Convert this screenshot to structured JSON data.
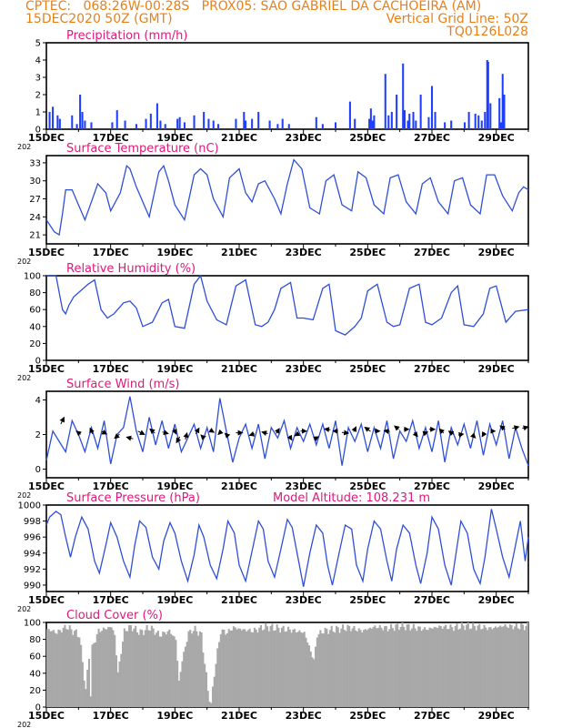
{
  "header": {
    "line1_left": "CPTEC:   068:26W-00:28S   PROX05: SAO GABRIEL DA CACHOEIRA (AM)",
    "line2_left": "15DEC2020 50Z (GMT)",
    "line2_right": "Vertical Grid Line: 50Z",
    "line3_right": "TQ0126L028"
  },
  "colors": {
    "header": "#e8801a",
    "panel_title": "#e0187a",
    "line": "#2f4fd6",
    "bar": "#1f3fff",
    "cloud": "#a8a8a8"
  },
  "x_axis": {
    "labels": [
      "15DEC",
      "17DEC",
      "19DEC",
      "21DEC",
      "23DEC",
      "25DEC",
      "27DEC",
      "29DEC"
    ],
    "year_stub": "202",
    "domain_days": [
      0,
      15
    ]
  },
  "chart_data": [
    {
      "id": "precipitation",
      "type": "bar",
      "title": "Precipitation (mm/h)",
      "ylim": [
        0,
        5
      ],
      "yticks": [
        "0",
        "1",
        "2",
        "3",
        "4",
        "5"
      ],
      "x": [
        0.1,
        0.2,
        0.35,
        0.42,
        0.8,
        0.95,
        1.05,
        1.12,
        1.2,
        1.4,
        2.05,
        2.2,
        2.45,
        2.8,
        3.1,
        3.25,
        3.45,
        3.55,
        3.7,
        4.08,
        4.15,
        4.3,
        4.6,
        4.9,
        5.05,
        5.2,
        5.35,
        5.9,
        6.15,
        6.2,
        6.4,
        6.6,
        6.95,
        7.2,
        7.35,
        7.55,
        8.4,
        8.6,
        9.0,
        9.45,
        9.6,
        10.05,
        10.1,
        10.15,
        10.2,
        10.55,
        10.65,
        10.75,
        10.9,
        11.1,
        11.15,
        11.25,
        11.3,
        11.42,
        11.5,
        11.65,
        11.9,
        12.0,
        12.1,
        12.4,
        12.6,
        13.02,
        13.15,
        13.35,
        13.45,
        13.55,
        13.65,
        13.72,
        13.75,
        13.82,
        14.1,
        14.15,
        14.2,
        14.25
      ],
      "values": [
        1.0,
        1.3,
        0.8,
        0.6,
        0.8,
        0.3,
        2.0,
        1.0,
        0.5,
        0.4,
        0.4,
        1.1,
        0.5,
        0.3,
        0.6,
        0.9,
        1.5,
        0.5,
        0.3,
        0.6,
        0.7,
        0.4,
        0.8,
        1.0,
        0.6,
        0.5,
        0.3,
        0.6,
        1.0,
        0.5,
        0.6,
        1.0,
        0.5,
        0.3,
        0.6,
        0.3,
        0.7,
        0.3,
        0.4,
        1.6,
        0.6,
        0.6,
        1.2,
        0.5,
        0.8,
        3.2,
        0.8,
        1.0,
        2.0,
        3.8,
        1.1,
        0.5,
        0.9,
        1.0,
        0.5,
        2.0,
        0.7,
        2.5,
        1.0,
        0.4,
        0.5,
        0.4,
        1.0,
        0.9,
        0.8,
        0.5,
        1.0,
        4.0,
        3.9,
        1.5,
        1.8,
        0.4,
        3.2,
        2.0
      ]
    },
    {
      "id": "temperature",
      "type": "line",
      "title": "Surface Temperature (nC)",
      "ylim": [
        19.5,
        34.2
      ],
      "yticks": [
        "21",
        "24",
        "27",
        "30",
        "33"
      ],
      "x": [
        0,
        0.25,
        0.4,
        0.5,
        0.6,
        0.8,
        1.0,
        1.2,
        1.4,
        1.6,
        1.85,
        2.0,
        2.3,
        2.5,
        2.6,
        2.8,
        3.0,
        3.2,
        3.5,
        3.65,
        3.8,
        4.0,
        4.3,
        4.6,
        4.8,
        5.0,
        5.2,
        5.5,
        5.7,
        6.0,
        6.2,
        6.4,
        6.6,
        6.8,
        7.1,
        7.3,
        7.5,
        7.7,
        7.95,
        8.2,
        8.5,
        8.7,
        8.95,
        9.2,
        9.5,
        9.7,
        9.95,
        10.2,
        10.5,
        10.7,
        10.95,
        11.2,
        11.5,
        11.7,
        11.95,
        12.2,
        12.5,
        12.7,
        12.95,
        13.2,
        13.5,
        13.7,
        13.95,
        14.2,
        14.5,
        14.7,
        14.85,
        15
      ],
      "values": [
        23.5,
        21.5,
        21.0,
        24.5,
        28.5,
        28.5,
        26.0,
        23.5,
        26.5,
        29.5,
        28.0,
        25.0,
        28.0,
        32.5,
        32.0,
        29.0,
        26.5,
        24.0,
        31.5,
        32.5,
        30.0,
        26.0,
        23.5,
        31.0,
        32.0,
        31.0,
        27.0,
        24.0,
        30.5,
        32.0,
        28.0,
        26.5,
        29.5,
        30.0,
        27.0,
        24.5,
        29.5,
        33.5,
        32.0,
        25.5,
        24.5,
        30.0,
        31.0,
        26.0,
        25.0,
        31.5,
        30.5,
        26.0,
        24.5,
        30.5,
        31.0,
        26.5,
        24.5,
        29.5,
        30.5,
        26.5,
        24.5,
        30.0,
        30.5,
        26.0,
        24.5,
        31.0,
        31.0,
        27.5,
        25.0,
        28.0,
        29.0,
        28.5
      ]
    },
    {
      "id": "humidity",
      "type": "line",
      "title": "Relative Humidity (%)",
      "ylim": [
        0,
        100
      ],
      "yticks": [
        "0",
        "20",
        "40",
        "60",
        "80",
        "100"
      ],
      "x": [
        0,
        0.3,
        0.5,
        0.6,
        0.7,
        0.85,
        1.0,
        1.3,
        1.5,
        1.7,
        1.9,
        2.1,
        2.4,
        2.6,
        2.8,
        3.0,
        3.3,
        3.6,
        3.8,
        4.0,
        4.3,
        4.6,
        4.8,
        5.0,
        5.3,
        5.6,
        5.9,
        6.2,
        6.5,
        6.7,
        6.9,
        7.1,
        7.3,
        7.6,
        7.8,
        8.0,
        8.3,
        8.6,
        8.8,
        9.0,
        9.3,
        9.6,
        9.8,
        10.0,
        10.3,
        10.6,
        10.8,
        11.0,
        11.3,
        11.6,
        11.8,
        12.0,
        12.3,
        12.6,
        12.8,
        13.0,
        13.3,
        13.6,
        13.8,
        14.0,
        14.3,
        14.6,
        15
      ],
      "values": [
        100,
        100,
        60,
        55,
        65,
        75,
        80,
        90,
        95,
        60,
        50,
        55,
        68,
        70,
        62,
        40,
        45,
        68,
        72,
        40,
        38,
        90,
        100,
        70,
        48,
        42,
        88,
        95,
        42,
        40,
        45,
        60,
        85,
        92,
        50,
        50,
        48,
        85,
        90,
        35,
        30,
        40,
        50,
        82,
        90,
        45,
        40,
        42,
        85,
        90,
        45,
        42,
        50,
        80,
        88,
        42,
        40,
        55,
        85,
        88,
        45,
        58,
        60
      ]
    },
    {
      "id": "wind",
      "type": "line",
      "title": "Surface Wind (m/s)",
      "ylim": [
        -0.5,
        4.5
      ],
      "yticks": [
        "0",
        "2",
        "4"
      ],
      "x": [
        0,
        0.2,
        0.4,
        0.6,
        0.8,
        1.0,
        1.2,
        1.4,
        1.6,
        1.8,
        2.0,
        2.2,
        2.4,
        2.6,
        2.8,
        3.0,
        3.2,
        3.4,
        3.6,
        3.8,
        4.0,
        4.2,
        4.4,
        4.6,
        4.8,
        5.0,
        5.2,
        5.4,
        5.6,
        5.8,
        6.0,
        6.2,
        6.4,
        6.6,
        6.8,
        7.0,
        7.2,
        7.4,
        7.6,
        7.8,
        8.0,
        8.2,
        8.4,
        8.6,
        8.8,
        9.0,
        9.2,
        9.4,
        9.6,
        9.8,
        10.0,
        10.2,
        10.4,
        10.6,
        10.8,
        11.0,
        11.2,
        11.4,
        11.6,
        11.8,
        12.0,
        12.2,
        12.4,
        12.6,
        12.8,
        13.0,
        13.2,
        13.4,
        13.6,
        13.8,
        14.0,
        14.2,
        14.4,
        14.6,
        14.8,
        15
      ],
      "values": [
        0.5,
        2.2,
        1.6,
        1.0,
        2.8,
        2.0,
        1.0,
        2.4,
        1.2,
        2.8,
        0.3,
        2.0,
        2.4,
        4.2,
        2.2,
        1.0,
        3.0,
        1.4,
        2.8,
        1.2,
        2.6,
        1.0,
        1.8,
        2.6,
        1.2,
        2.4,
        1.0,
        4.1,
        2.2,
        0.4,
        1.8,
        2.6,
        1.2,
        2.6,
        0.6,
        2.4,
        1.8,
        2.8,
        1.2,
        2.4,
        1.6,
        2.6,
        1.4,
        2.6,
        1.2,
        2.8,
        0.2,
        2.4,
        1.6,
        2.6,
        1.0,
        2.4,
        1.2,
        2.8,
        0.6,
        2.2,
        1.6,
        2.8,
        1.2,
        2.4,
        1.0,
        2.8,
        0.4,
        2.4,
        1.4,
        2.6,
        1.2,
        2.8,
        0.8,
        2.6,
        1.4,
        2.8,
        0.6,
        2.4,
        1.2,
        0.2
      ]
    },
    {
      "id": "pressure",
      "type": "line",
      "title": "Surface Pressure (hPa)",
      "subtitle": "Model Altitude: 108.231 m",
      "ylim": [
        989.2,
        1000
      ],
      "yticks": [
        "990",
        "992",
        "994",
        "996",
        "998",
        "1000"
      ],
      "x": [
        0,
        0.1,
        0.3,
        0.45,
        0.6,
        0.75,
        0.9,
        1.1,
        1.3,
        1.5,
        1.65,
        1.85,
        2.0,
        2.2,
        2.4,
        2.6,
        2.75,
        2.9,
        3.1,
        3.3,
        3.5,
        3.65,
        3.85,
        4.0,
        4.2,
        4.4,
        4.6,
        4.75,
        4.9,
        5.1,
        5.3,
        5.5,
        5.65,
        5.85,
        6.0,
        6.2,
        6.4,
        6.6,
        6.75,
        6.9,
        7.1,
        7.3,
        7.5,
        7.65,
        7.85,
        8.0,
        8.2,
        8.4,
        8.6,
        8.75,
        8.9,
        9.1,
        9.3,
        9.5,
        9.65,
        9.85,
        10.0,
        10.2,
        10.4,
        10.6,
        10.75,
        10.9,
        11.1,
        11.3,
        11.5,
        11.65,
        11.85,
        12.0,
        12.2,
        12.4,
        12.6,
        12.75,
        12.9,
        13.1,
        13.3,
        13.5,
        13.65,
        13.85,
        14.0,
        14.2,
        14.4,
        14.6,
        14.75,
        14.9,
        15
      ],
      "values": [
        997.5,
        998.5,
        999.2,
        998.8,
        996.0,
        993.5,
        996.0,
        998.5,
        997.0,
        993.0,
        991.5,
        995.0,
        997.8,
        996.0,
        993.0,
        991.0,
        995.0,
        998.0,
        997.2,
        993.5,
        992.0,
        995.5,
        997.8,
        996.5,
        993.0,
        990.5,
        993.8,
        997.5,
        996.0,
        992.5,
        990.8,
        994.5,
        998.0,
        996.5,
        992.5,
        990.5,
        994.2,
        998.0,
        997.0,
        993.0,
        991.0,
        994.5,
        998.2,
        997.2,
        993.0,
        989.8,
        994.0,
        997.5,
        996.5,
        992.5,
        990.0,
        993.8,
        997.5,
        997.0,
        992.5,
        990.5,
        994.5,
        998.0,
        997.0,
        993.0,
        990.5,
        994.5,
        997.5,
        996.5,
        992.5,
        990.2,
        994.0,
        998.5,
        997.0,
        992.5,
        990.0,
        994.0,
        998.0,
        996.5,
        992.0,
        990.2,
        993.5,
        999.5,
        997.0,
        993.5,
        991.0,
        995.0,
        998.0,
        993.0,
        996.0
      ]
    },
    {
      "id": "cloud_cover",
      "type": "area",
      "title": "Cloud Cover (%)",
      "ylim": [
        0,
        100
      ],
      "yticks": [
        "0",
        "20",
        "40",
        "60",
        "80",
        "100"
      ],
      "x": [
        0,
        0.3,
        0.6,
        0.8,
        1.0,
        1.2,
        1.3,
        1.35,
        1.4,
        1.6,
        2.0,
        2.1,
        2.2,
        2.4,
        2.6,
        2.9,
        3.2,
        3.5,
        3.8,
        4.0,
        4.1,
        4.2,
        4.4,
        4.6,
        4.8,
        5.0,
        5.1,
        5.2,
        5.4,
        5.6,
        5.8,
        6.0,
        6.4,
        6.8,
        7.2,
        7.6,
        8.0,
        8.3,
        8.4,
        8.6,
        9.0,
        9.4,
        9.8,
        10.2,
        10.6,
        11.0,
        11.4,
        11.8,
        12.2,
        12.6,
        13.0,
        13.4,
        13.8,
        14.2,
        14.6,
        15
      ],
      "values": [
        92,
        88,
        95,
        90,
        85,
        20,
        60,
        15,
        70,
        90,
        95,
        85,
        40,
        90,
        95,
        88,
        94,
        85,
        90,
        80,
        30,
        55,
        88,
        92,
        85,
        20,
        2,
        40,
        90,
        88,
        94,
        92,
        90,
        95,
        93,
        91,
        88,
        55,
        85,
        90,
        92,
        94,
        90,
        95,
        93,
        96,
        94,
        92,
        95,
        94,
        96,
        95,
        93,
        96,
        95,
        96
      ]
    }
  ],
  "wind_arrows": {
    "x": [
      0.5,
      1.0,
      1.4,
      1.8,
      2.2,
      2.6,
      2.95,
      3.3,
      3.7,
      4.0,
      4.1,
      4.35,
      4.7,
      4.85,
      5.15,
      5.4,
      5.6,
      6.0,
      6.4,
      6.8,
      7.2,
      7.6,
      7.8,
      8.0,
      8.4,
      8.75,
      9.0,
      9.3,
      9.6,
      10.0,
      10.3,
      10.6,
      10.9,
      11.2,
      11.5,
      11.8,
      12.0,
      12.3,
      12.6,
      12.9,
      13.3,
      13.6,
      13.9,
      14.2,
      14.6,
      14.9
    ],
    "y": [
      2.8,
      2.1,
      2.2,
      2.1,
      1.9,
      1.8,
      2.1,
      2.2,
      2.1,
      2.2,
      1.7,
      1.9,
      2.2,
      1.9,
      2.2,
      2.1,
      2.0,
      2.1,
      2.0,
      2.1,
      2.2,
      1.8,
      2.0,
      2.2,
      1.8,
      2.3,
      2.2,
      2.1,
      2.3,
      2.3,
      2.2,
      2.2,
      2.4,
      2.3,
      2.0,
      2.1,
      2.3,
      2.2,
      2.1,
      2.0,
      1.9,
      2.0,
      2.2,
      2.4,
      2.4,
      2.4
    ],
    "u": [
      0.4,
      -0.5,
      -0.3,
      0.6,
      -0.6,
      -0.8,
      0.8,
      -0.6,
      0.7,
      0.3,
      -0.4,
      0.2,
      0.4,
      -0.3,
      0.5,
      -0.4,
      -0.3,
      0.8,
      -0.6,
      -0.7,
      0.4,
      0.3,
      -0.5,
      0.7,
      0.5,
      -0.7,
      -0.6,
      0.8,
      0.3,
      -0.7,
      0.6,
      -0.7,
      -0.5,
      0.6,
      0.4,
      0.5,
      0.7,
      -0.5,
      -0.6,
      0.6,
      0.4,
      -0.3,
      0.5,
      -0.6,
      0.8,
      0.7
    ],
    "v": [
      0.8,
      0.4,
      0.7,
      -0.3,
      -0.5,
      0.2,
      -0.4,
      0.5,
      -0.2,
      -0.7,
      -0.7,
      0.8,
      0.7,
      0.3,
      -0.3,
      -0.4,
      0.3,
      0.0,
      -0.2,
      0.2,
      0.6,
      -0.5,
      -0.3,
      0.0,
      0.3,
      0.1,
      0.0,
      -0.1,
      0.6,
      0.5,
      0.0,
      0.1,
      0.4,
      0.0,
      -0.5,
      0.2,
      0.0,
      0.5,
      0.4,
      0.1,
      -0.4,
      -0.5,
      0.0,
      0.4,
      0.2,
      0.2
    ]
  }
}
